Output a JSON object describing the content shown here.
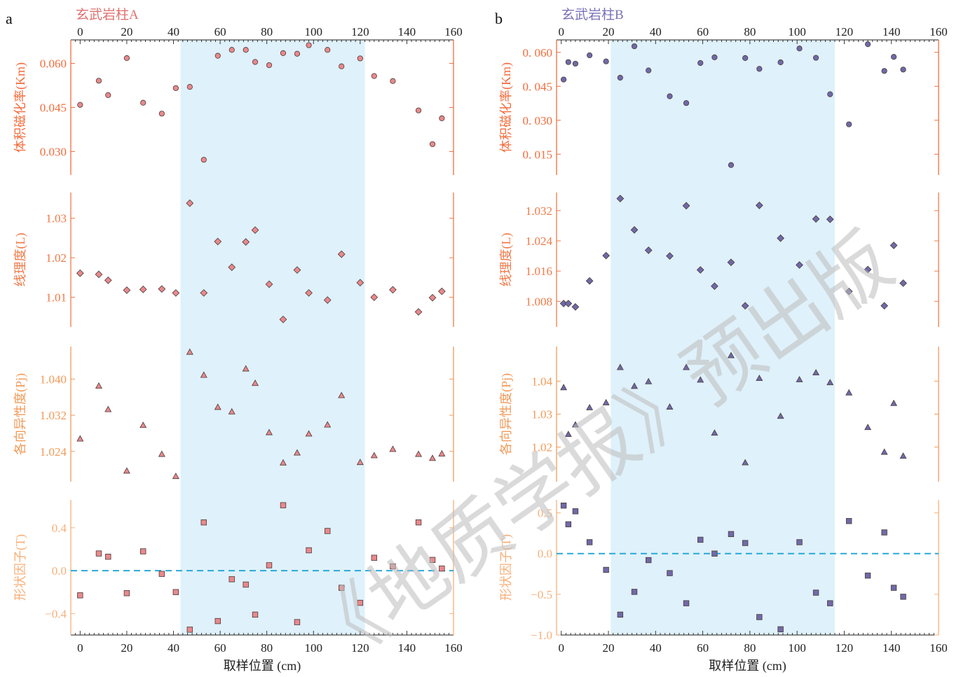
{
  "colors": {
    "bg": "#ffffff",
    "title_a": "#e07070",
    "title_b": "#7a72b8",
    "ax_km": "#f26d3d",
    "ax_l": "#f07a4a",
    "ax_p": "#f19b5a",
    "ax_t": "#f6b07a",
    "km_fill_a": "#e8898c",
    "km_fill_b": "#6f6aa8",
    "highlight": "#dff1fb",
    "dashed": "#29a9d8",
    "ink": "#222222",
    "watermark": "#bdbdbd"
  },
  "watermark": "《地质学报》预出版",
  "xlabel": "取样位置 (cm)",
  "chart_data": [
    {
      "type": "scatter",
      "panel_letter": "a",
      "title": "玄武岩柱A",
      "x_ticks": [
        0,
        20,
        40,
        60,
        80,
        100,
        120,
        140,
        160
      ],
      "xlim": [
        -4,
        160
      ],
      "highlight": [
        43,
        122
      ],
      "subplots": [
        {
          "ylabel": "体积磁化率(Km)",
          "marker": "circle",
          "ylim": [
            0.022,
            0.068
          ],
          "y_ticks": [
            0.03,
            0.045,
            0.06
          ],
          "tick_labels": [
            "0.030",
            "0.045",
            "0.060"
          ],
          "x": [
            0,
            8,
            12,
            20,
            27,
            35,
            41,
            47,
            53,
            59,
            65,
            71,
            75,
            81,
            87,
            93,
            98,
            106,
            112,
            120,
            126,
            134,
            145,
            151,
            155
          ],
          "y": [
            0.0459,
            0.0541,
            0.0492,
            0.0618,
            0.0466,
            0.0429,
            0.0516,
            0.052,
            0.0272,
            0.0626,
            0.0646,
            0.0646,
            0.0605,
            0.0594,
            0.0635,
            0.0633,
            0.0662,
            0.0646,
            0.059,
            0.0617,
            0.0557,
            0.054,
            0.044,
            0.0325,
            0.0413
          ]
        },
        {
          "ylabel": "线理度(L)",
          "marker": "diamond",
          "ylim": [
            1.0025,
            1.0365
          ],
          "y_ticks": [
            1.01,
            1.02,
            1.03
          ],
          "tick_labels": [
            "1.01",
            "1.02",
            "1.03"
          ],
          "x": [
            0,
            8,
            12,
            20,
            27,
            35,
            41,
            47,
            53,
            59,
            65,
            71,
            75,
            81,
            87,
            93,
            98,
            106,
            112,
            120,
            126,
            134,
            145,
            151,
            155
          ],
          "y": [
            1.0161,
            1.0158,
            1.0143,
            1.0118,
            1.012,
            1.0121,
            1.0111,
            1.0338,
            1.0111,
            1.0241,
            1.0176,
            1.024,
            1.027,
            1.0133,
            1.0044,
            1.0169,
            1.0111,
            1.0093,
            1.0209,
            1.0137,
            1.01,
            1.0119,
            1.0063,
            1.0099,
            1.0115
          ]
        },
        {
          "ylabel": "各向异性度(Pj)",
          "marker": "triangle",
          "ylim": [
            1.0173,
            1.0472
          ],
          "y_ticks": [
            1.024,
            1.032,
            1.04
          ],
          "tick_labels": [
            "1.024",
            "1.032",
            "1.040"
          ],
          "x": [
            0,
            8,
            12,
            20,
            27,
            35,
            41,
            47,
            53,
            59,
            65,
            71,
            75,
            81,
            87,
            93,
            98,
            106,
            112,
            120,
            126,
            134,
            145,
            151,
            155
          ],
          "y": [
            1.0268,
            1.0385,
            1.0333,
            1.0197,
            1.0298,
            1.0234,
            1.0185,
            1.046,
            1.0409,
            1.0338,
            1.0328,
            1.0423,
            1.0391,
            1.0282,
            1.0215,
            1.0237,
            1.0279,
            1.0299,
            1.0364,
            1.0216,
            1.0231,
            1.0245,
            1.0234,
            1.0225,
            1.0235
          ]
        },
        {
          "ylabel": "形状因子(T)",
          "marker": "square",
          "ylim": [
            -0.6,
            0.66
          ],
          "y_ticks": [
            -0.4,
            0.0,
            0.4
          ],
          "tick_labels": [
            "−0.4",
            "0.0",
            "0.4"
          ],
          "zero_line": 0,
          "x": [
            0,
            8,
            12,
            20,
            27,
            35,
            41,
            47,
            53,
            59,
            65,
            71,
            75,
            81,
            87,
            93,
            98,
            106,
            112,
            120,
            126,
            134,
            145,
            151,
            155
          ],
          "y": [
            -0.23,
            0.16,
            0.13,
            -0.21,
            0.18,
            -0.03,
            -0.2,
            -0.55,
            0.45,
            -0.47,
            -0.08,
            -0.13,
            -0.41,
            0.05,
            0.61,
            -0.48,
            0.19,
            0.37,
            -0.16,
            -0.3,
            0.12,
            0.04,
            0.45,
            0.1,
            0.02
          ]
        }
      ]
    },
    {
      "type": "scatter",
      "panel_letter": "b",
      "title": "玄武岩柱B",
      "x_ticks": [
        0,
        20,
        40,
        60,
        80,
        100,
        120,
        140,
        160
      ],
      "xlim": [
        -2,
        160
      ],
      "highlight": [
        21,
        116
      ],
      "subplots": [
        {
          "ylabel": "体积磁化率(Km)",
          "marker": "circle",
          "ylim": [
            0.0058,
            0.0655
          ],
          "y_ticks": [
            0.015,
            0.03,
            0.045,
            0.06
          ],
          "tick_labels": [
            "0. 015",
            "0. 030",
            "0. 045",
            "0. 060"
          ],
          "x": [
            1,
            3,
            6,
            12,
            19,
            25,
            31,
            37,
            46,
            53,
            59,
            65,
            72,
            78,
            84,
            93,
            101,
            108,
            114,
            122,
            130,
            137,
            141,
            145
          ],
          "y": [
            0.048,
            0.0557,
            0.055,
            0.0587,
            0.056,
            0.0488,
            0.0627,
            0.052,
            0.0406,
            0.0376,
            0.0553,
            0.0578,
            0.0102,
            0.0575,
            0.0527,
            0.0556,
            0.0617,
            0.0576,
            0.0415,
            0.0282,
            0.0636,
            0.0518,
            0.058,
            0.0524
          ]
        },
        {
          "ylabel": "线理度(L)",
          "marker": "diamond",
          "ylim": [
            1.0012,
            1.0368
          ],
          "y_ticks": [
            1.008,
            1.016,
            1.024,
            1.032
          ],
          "tick_labels": [
            "1.008",
            "1.016",
            "1.024",
            "1.032"
          ],
          "x": [
            1,
            3,
            6,
            12,
            19,
            25,
            31,
            37,
            46,
            53,
            59,
            65,
            72,
            78,
            84,
            93,
            101,
            108,
            114,
            122,
            130,
            137,
            141,
            145
          ],
          "y": [
            1.0074,
            1.0074,
            1.0065,
            1.0134,
            1.0201,
            1.0352,
            1.0269,
            1.0215,
            1.02,
            1.0333,
            1.0163,
            1.012,
            1.0183,
            1.0068,
            1.0334,
            1.0247,
            1.0176,
            1.0298,
            1.0297,
            1.0106,
            1.0164,
            1.0068,
            1.0228,
            1.0128
          ]
        },
        {
          "ylabel": "各向异性度(Pj)",
          "marker": "triangle",
          "ylim": [
            1.0095,
            1.0505
          ],
          "y_ticks": [
            1.02,
            1.03,
            1.04
          ],
          "tick_labels": [
            "1.02",
            "1.03",
            "1.04"
          ],
          "x": [
            1,
            3,
            6,
            12,
            19,
            25,
            31,
            37,
            46,
            53,
            59,
            65,
            72,
            78,
            84,
            93,
            101,
            108,
            114,
            122,
            130,
            137,
            141,
            145
          ],
          "y": [
            1.0381,
            1.0239,
            1.0268,
            1.032,
            1.0335,
            1.0442,
            1.0385,
            1.0399,
            1.0322,
            1.0442,
            1.0404,
            1.0243,
            1.0478,
            1.0153,
            1.0409,
            1.0294,
            1.0405,
            1.0426,
            1.0396,
            1.0365,
            1.026,
            1.0185,
            1.0333,
            1.0173
          ]
        },
        {
          "ylabel": "形状因子(T)",
          "marker": "square",
          "ylim": [
            -1.0,
            0.66
          ],
          "y_ticks": [
            -1.0,
            -0.5,
            0.0,
            0.5
          ],
          "tick_labels": [
            "−1.0",
            "−0.5",
            "0.0",
            "0.5"
          ],
          "zero_line": 0,
          "x": [
            1,
            3,
            6,
            12,
            19,
            25,
            31,
            37,
            46,
            53,
            59,
            65,
            72,
            78,
            84,
            93,
            101,
            108,
            114,
            122,
            130,
            137,
            141,
            145
          ],
          "y": [
            0.59,
            0.36,
            0.52,
            0.14,
            -0.2,
            -0.75,
            -0.47,
            -0.08,
            -0.24,
            -0.61,
            0.17,
            0.0,
            0.24,
            0.13,
            -0.78,
            -0.93,
            0.14,
            -0.48,
            -0.61,
            0.4,
            -0.27,
            0.26,
            -0.42,
            -0.53
          ]
        }
      ]
    }
  ]
}
